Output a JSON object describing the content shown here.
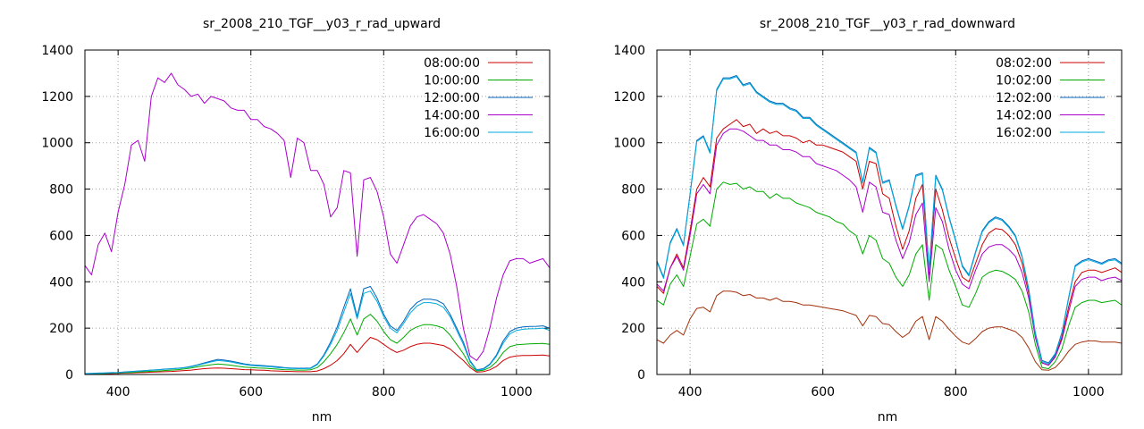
{
  "chart_data": [
    {
      "type": "line",
      "title": "sr_2008_210_TGF__y03_r_rad_upward",
      "xlabel": "nm",
      "ylabel": "",
      "xlim": [
        350,
        1050
      ],
      "ylim": [
        0,
        1400
      ],
      "xticks": [
        400,
        600,
        800,
        1000
      ],
      "yticks": [
        0,
        200,
        400,
        600,
        800,
        1000,
        1200,
        1400
      ],
      "grid": true,
      "legend_position": "top-right",
      "x": [
        350,
        360,
        370,
        380,
        390,
        400,
        410,
        420,
        430,
        440,
        450,
        460,
        470,
        480,
        490,
        500,
        510,
        520,
        530,
        540,
        550,
        560,
        570,
        580,
        590,
        600,
        610,
        620,
        630,
        640,
        650,
        660,
        670,
        680,
        690,
        700,
        710,
        720,
        730,
        740,
        750,
        760,
        770,
        780,
        790,
        800,
        810,
        820,
        830,
        840,
        850,
        860,
        870,
        880,
        890,
        900,
        910,
        920,
        930,
        940,
        950,
        960,
        970,
        980,
        990,
        1000,
        1010,
        1020,
        1030,
        1040,
        1050
      ],
      "series": [
        {
          "name": "08:00:00",
          "color": "#cc0000",
          "values": [
            2,
            3,
            3,
            4,
            4,
            5,
            6,
            7,
            8,
            9,
            10,
            11,
            12,
            13,
            15,
            17,
            19,
            22,
            25,
            27,
            28,
            27,
            25,
            23,
            21,
            20,
            19,
            18,
            16,
            15,
            14,
            13,
            12,
            12,
            12,
            15,
            25,
            40,
            60,
            90,
            130,
            95,
            130,
            160,
            150,
            130,
            110,
            95,
            105,
            120,
            130,
            135,
            135,
            130,
            125,
            110,
            85,
            60,
            30,
            10,
            12,
            20,
            35,
            60,
            75,
            80,
            82,
            82,
            83,
            84,
            80
          ]
        },
        {
          "name": "10:00:00",
          "color": "#00aa00",
          "values": [
            3,
            4,
            4,
            5,
            6,
            7,
            8,
            9,
            11,
            12,
            14,
            15,
            17,
            19,
            21,
            24,
            28,
            33,
            38,
            42,
            45,
            43,
            40,
            36,
            32,
            30,
            28,
            27,
            25,
            23,
            21,
            20,
            19,
            19,
            20,
            30,
            55,
            90,
            130,
            180,
            240,
            170,
            240,
            260,
            230,
            185,
            150,
            135,
            160,
            190,
            205,
            215,
            215,
            210,
            200,
            170,
            130,
            90,
            40,
            15,
            18,
            30,
            55,
            95,
            120,
            128,
            130,
            132,
            133,
            134,
            130
          ]
        },
        {
          "name": "12:00:00",
          "color": "#0066bb",
          "values": [
            4,
            5,
            6,
            7,
            8,
            9,
            11,
            13,
            15,
            17,
            19,
            21,
            23,
            25,
            27,
            30,
            35,
            42,
            50,
            58,
            65,
            62,
            58,
            52,
            46,
            42,
            40,
            38,
            36,
            33,
            30,
            28,
            27,
            27,
            28,
            45,
            85,
            140,
            205,
            290,
            370,
            250,
            370,
            380,
            330,
            260,
            210,
            190,
            230,
            280,
            310,
            325,
            325,
            320,
            305,
            260,
            200,
            140,
            60,
            20,
            25,
            45,
            85,
            145,
            185,
            200,
            205,
            207,
            208,
            210,
            200
          ]
        },
        {
          "name": "14:00:00",
          "color": "#aa00cc",
          "values": [
            470,
            430,
            560,
            610,
            530,
            700,
            820,
            990,
            1010,
            920,
            1200,
            1280,
            1260,
            1300,
            1250,
            1230,
            1200,
            1210,
            1170,
            1200,
            1190,
            1180,
            1150,
            1140,
            1140,
            1100,
            1100,
            1070,
            1060,
            1040,
            1010,
            850,
            1020,
            1000,
            880,
            880,
            820,
            680,
            720,
            880,
            870,
            510,
            840,
            850,
            790,
            680,
            520,
            480,
            560,
            640,
            680,
            690,
            670,
            650,
            610,
            520,
            380,
            200,
            80,
            60,
            100,
            200,
            330,
            430,
            490,
            500,
            500,
            480,
            490,
            500,
            460
          ]
        },
        {
          "name": "16:00:00",
          "color": "#00aadd",
          "values": [
            3,
            4,
            5,
            6,
            7,
            8,
            10,
            12,
            14,
            16,
            18,
            20,
            22,
            24,
            26,
            29,
            33,
            40,
            47,
            54,
            60,
            58,
            54,
            48,
            43,
            39,
            37,
            35,
            33,
            30,
            28,
            26,
            25,
            25,
            26,
            42,
            80,
            130,
            190,
            270,
            350,
            240,
            350,
            360,
            315,
            250,
            200,
            180,
            220,
            265,
            295,
            310,
            310,
            305,
            290,
            250,
            190,
            130,
            55,
            18,
            22,
            42,
            80,
            135,
            175,
            190,
            195,
            197,
            198,
            200,
            190
          ]
        }
      ]
    },
    {
      "type": "line",
      "title": "sr_2008_210_TGF__y03_r_rad_downward",
      "xlabel": "nm",
      "ylabel": "",
      "xlim": [
        350,
        1050
      ],
      "ylim": [
        0,
        1400
      ],
      "xticks": [
        400,
        600,
        800,
        1000
      ],
      "yticks": [
        0,
        200,
        400,
        600,
        800,
        1000,
        1200,
        1400
      ],
      "grid": true,
      "legend_position": "top-right",
      "x": [
        350,
        360,
        370,
        380,
        390,
        400,
        410,
        420,
        430,
        440,
        450,
        460,
        470,
        480,
        490,
        500,
        510,
        520,
        530,
        540,
        550,
        560,
        570,
        580,
        590,
        600,
        610,
        620,
        630,
        640,
        650,
        660,
        670,
        680,
        690,
        700,
        710,
        720,
        730,
        740,
        750,
        760,
        770,
        780,
        790,
        800,
        810,
        820,
        830,
        840,
        850,
        860,
        870,
        880,
        890,
        900,
        910,
        920,
        930,
        940,
        950,
        960,
        970,
        980,
        990,
        1000,
        1010,
        1020,
        1030,
        1040,
        1050
      ],
      "series": [
        {
          "name": "08:02:00",
          "color": "#cc0000",
          "values": [
            380,
            350,
            460,
            520,
            460,
            620,
            800,
            850,
            810,
            1020,
            1060,
            1080,
            1100,
            1070,
            1080,
            1040,
            1060,
            1040,
            1050,
            1030,
            1030,
            1020,
            1000,
            1010,
            990,
            990,
            980,
            970,
            960,
            940,
            920,
            800,
            920,
            910,
            780,
            760,
            640,
            540,
            620,
            760,
            820,
            430,
            800,
            710,
            590,
            500,
            420,
            400,
            480,
            560,
            610,
            630,
            625,
            600,
            560,
            480,
            350,
            170,
            50,
            40,
            80,
            160,
            290,
            400,
            440,
            450,
            450,
            440,
            450,
            460,
            440
          ]
        },
        {
          "name": "10:02:00",
          "color": "#00aa00",
          "values": [
            320,
            300,
            390,
            430,
            380,
            510,
            650,
            670,
            640,
            800,
            830,
            820,
            825,
            800,
            810,
            790,
            790,
            760,
            780,
            760,
            760,
            740,
            730,
            720,
            700,
            690,
            680,
            660,
            650,
            620,
            600,
            520,
            600,
            580,
            500,
            480,
            420,
            380,
            430,
            520,
            560,
            320,
            560,
            540,
            450,
            380,
            300,
            290,
            350,
            420,
            440,
            450,
            445,
            430,
            410,
            360,
            270,
            130,
            30,
            25,
            55,
            110,
            210,
            290,
            310,
            320,
            320,
            310,
            315,
            320,
            300
          ]
        },
        {
          "name": "12:02:00",
          "color": "#0066bb",
          "values": [
            490,
            420,
            570,
            630,
            560,
            780,
            1010,
            1030,
            960,
            1230,
            1280,
            1280,
            1290,
            1250,
            1260,
            1220,
            1200,
            1180,
            1170,
            1170,
            1150,
            1140,
            1110,
            1110,
            1080,
            1060,
            1040,
            1020,
            1000,
            980,
            960,
            830,
            980,
            960,
            830,
            840,
            730,
            630,
            730,
            860,
            870,
            450,
            860,
            800,
            680,
            580,
            470,
            430,
            530,
            620,
            660,
            680,
            670,
            640,
            600,
            510,
            370,
            180,
            60,
            50,
            90,
            180,
            330,
            470,
            490,
            500,
            490,
            480,
            495,
            500,
            480
          ]
        },
        {
          "name": "14:02:00",
          "color": "#aa00cc",
          "values": [
            390,
            360,
            460,
            510,
            450,
            600,
            780,
            820,
            780,
            990,
            1040,
            1060,
            1060,
            1050,
            1030,
            1010,
            1010,
            990,
            990,
            970,
            970,
            960,
            940,
            940,
            910,
            900,
            890,
            880,
            860,
            840,
            810,
            700,
            830,
            810,
            700,
            690,
            580,
            500,
            570,
            690,
            740,
            400,
            720,
            660,
            540,
            450,
            390,
            370,
            450,
            520,
            550,
            560,
            560,
            540,
            510,
            440,
            330,
            160,
            50,
            40,
            75,
            150,
            270,
            380,
            410,
            420,
            420,
            405,
            415,
            420,
            405
          ]
        },
        {
          "name": "16:02:00",
          "color": "#00aadd",
          "values": [
            485,
            415,
            565,
            625,
            555,
            775,
            1005,
            1025,
            955,
            1225,
            1275,
            1275,
            1285,
            1245,
            1255,
            1215,
            1195,
            1175,
            1165,
            1165,
            1145,
            1135,
            1105,
            1105,
            1075,
            1055,
            1035,
            1015,
            995,
            975,
            955,
            825,
            975,
            955,
            825,
            835,
            725,
            625,
            725,
            855,
            865,
            445,
            855,
            795,
            675,
            575,
            465,
            425,
            525,
            615,
            655,
            675,
            665,
            635,
            595,
            505,
            365,
            175,
            55,
            45,
            85,
            175,
            325,
            465,
            485,
            495,
            485,
            475,
            490,
            495,
            475
          ]
        },
        {
          "name": "",
          "color": "#a0300a",
          "values": [
            150,
            135,
            170,
            190,
            170,
            240,
            285,
            290,
            270,
            340,
            360,
            360,
            355,
            340,
            345,
            330,
            330,
            320,
            330,
            315,
            315,
            310,
            300,
            300,
            295,
            290,
            285,
            280,
            275,
            265,
            255,
            210,
            255,
            250,
            220,
            215,
            185,
            160,
            180,
            230,
            250,
            150,
            250,
            230,
            195,
            165,
            140,
            130,
            155,
            185,
            200,
            205,
            205,
            195,
            185,
            160,
            115,
            55,
            20,
            18,
            30,
            60,
            100,
            130,
            140,
            145,
            145,
            140,
            140,
            140,
            135
          ]
        }
      ]
    }
  ]
}
